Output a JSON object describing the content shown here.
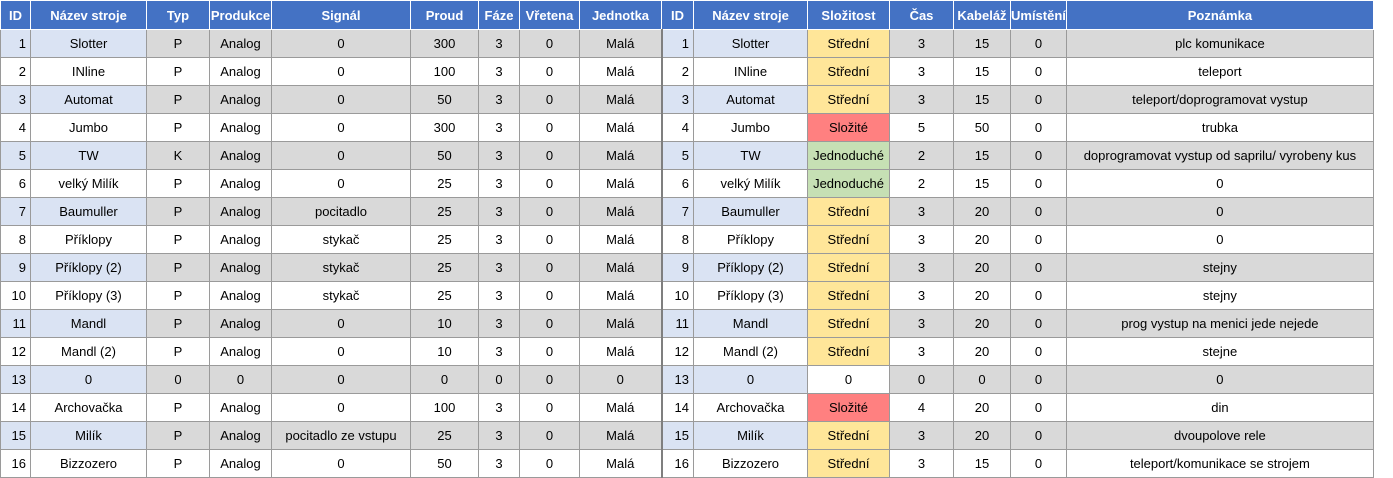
{
  "colors": {
    "header_bg": "#4472c4",
    "row_band": "#d9d9d9",
    "name_band": "#dae3f3",
    "complexity_medium": "#ffe699",
    "complexity_hard": "#ff8080",
    "complexity_easy": "#c6e0b4"
  },
  "headers": [
    "ID",
    "Název stroje",
    "Typ",
    "Produkce",
    "Signál",
    "Proud",
    "Fáze",
    "Vřetena",
    "Jednotka",
    "ID",
    "Název stroje",
    "Složitost",
    "Čas",
    "Kabeláž",
    "Umístění",
    "Poznámka"
  ],
  "rows": [
    {
      "id": "1",
      "name": "Slotter",
      "typ": "P",
      "produkce": "Analog",
      "signal": "0",
      "proud": "300",
      "faze": "3",
      "vretena": "0",
      "jednotka": "Malá",
      "id2": "1",
      "name2": "Slotter",
      "slozitost": "Střední",
      "cx": "stredni",
      "cas": "3",
      "kabelaz": "15",
      "umisteni": "0",
      "poznamka": "plc komunikace"
    },
    {
      "id": "2",
      "name": "INline",
      "typ": "P",
      "produkce": "Analog",
      "signal": "0",
      "proud": "100",
      "faze": "3",
      "vretena": "0",
      "jednotka": "Malá",
      "id2": "2",
      "name2": "INline",
      "slozitost": "Střední",
      "cx": "stredni",
      "cas": "3",
      "kabelaz": "15",
      "umisteni": "0",
      "poznamka": "teleport"
    },
    {
      "id": "3",
      "name": "Automat",
      "typ": "P",
      "produkce": "Analog",
      "signal": "0",
      "proud": "50",
      "faze": "3",
      "vretena": "0",
      "jednotka": "Malá",
      "id2": "3",
      "name2": "Automat",
      "slozitost": "Střední",
      "cx": "stredni",
      "cas": "3",
      "kabelaz": "15",
      "umisteni": "0",
      "poznamka": "teleport/doprogramovat vystup"
    },
    {
      "id": "4",
      "name": "Jumbo",
      "typ": "P",
      "produkce": "Analog",
      "signal": "0",
      "proud": "300",
      "faze": "3",
      "vretena": "0",
      "jednotka": "Malá",
      "id2": "4",
      "name2": "Jumbo",
      "slozitost": "Složité",
      "cx": "slozite",
      "cas": "5",
      "kabelaz": "50",
      "umisteni": "0",
      "poznamka": "trubka"
    },
    {
      "id": "5",
      "name": "TW",
      "typ": "K",
      "produkce": "Analog",
      "signal": "0",
      "proud": "50",
      "faze": "3",
      "vretena": "0",
      "jednotka": "Malá",
      "id2": "5",
      "name2": "TW",
      "slozitost": "Jednoduché",
      "cx": "jednoduche",
      "cas": "2",
      "kabelaz": "15",
      "umisteni": "0",
      "poznamka": "doprogramovat vystup od saprilu/ vyrobeny kus"
    },
    {
      "id": "6",
      "name": "velký Milík",
      "typ": "P",
      "produkce": "Analog",
      "signal": "0",
      "proud": "25",
      "faze": "3",
      "vretena": "0",
      "jednotka": "Malá",
      "id2": "6",
      "name2": "velký Milík",
      "slozitost": "Jednoduché",
      "cx": "jednoduche",
      "cas": "2",
      "kabelaz": "15",
      "umisteni": "0",
      "poznamka": "0"
    },
    {
      "id": "7",
      "name": "Baumuller",
      "typ": "P",
      "produkce": "Analog",
      "signal": "pocitadlo",
      "proud": "25",
      "faze": "3",
      "vretena": "0",
      "jednotka": "Malá",
      "id2": "7",
      "name2": "Baumuller",
      "slozitost": "Střední",
      "cx": "stredni",
      "cas": "3",
      "kabelaz": "20",
      "umisteni": "0",
      "poznamka": "0"
    },
    {
      "id": "8",
      "name": "Příklopy",
      "typ": "P",
      "produkce": "Analog",
      "signal": "stykač",
      "proud": "25",
      "faze": "3",
      "vretena": "0",
      "jednotka": "Malá",
      "id2": "8",
      "name2": "Příklopy",
      "slozitost": "Střední",
      "cx": "stredni",
      "cas": "3",
      "kabelaz": "20",
      "umisteni": "0",
      "poznamka": "0"
    },
    {
      "id": "9",
      "name": "Příklopy (2)",
      "typ": "P",
      "produkce": "Analog",
      "signal": "stykač",
      "proud": "25",
      "faze": "3",
      "vretena": "0",
      "jednotka": "Malá",
      "id2": "9",
      "name2": "Příklopy (2)",
      "slozitost": "Střední",
      "cx": "stredni",
      "cas": "3",
      "kabelaz": "20",
      "umisteni": "0",
      "poznamka": "stejny"
    },
    {
      "id": "10",
      "name": "Příklopy (3)",
      "typ": "P",
      "produkce": "Analog",
      "signal": "stykač",
      "proud": "25",
      "faze": "3",
      "vretena": "0",
      "jednotka": "Malá",
      "id2": "10",
      "name2": "Příklopy (3)",
      "slozitost": "Střední",
      "cx": "stredni",
      "cas": "3",
      "kabelaz": "20",
      "umisteni": "0",
      "poznamka": "stejny"
    },
    {
      "id": "11",
      "name": "Mandl",
      "typ": "P",
      "produkce": "Analog",
      "signal": "0",
      "proud": "10",
      "faze": "3",
      "vretena": "0",
      "jednotka": "Malá",
      "id2": "11",
      "name2": "Mandl",
      "slozitost": "Střední",
      "cx": "stredni",
      "cas": "3",
      "kabelaz": "20",
      "umisteni": "0",
      "poznamka": "prog vystup na menici jede nejede"
    },
    {
      "id": "12",
      "name": "Mandl (2)",
      "typ": "P",
      "produkce": "Analog",
      "signal": "0",
      "proud": "10",
      "faze": "3",
      "vretena": "0",
      "jednotka": "Malá",
      "id2": "12",
      "name2": "Mandl (2)",
      "slozitost": "Střední",
      "cx": "stredni",
      "cas": "3",
      "kabelaz": "20",
      "umisteni": "0",
      "poznamka": "stejne"
    },
    {
      "id": "13",
      "name": "0",
      "typ": "0",
      "produkce": "0",
      "signal": "0",
      "proud": "0",
      "faze": "0",
      "vretena": "0",
      "jednotka": "0",
      "id2": "13",
      "name2": "0",
      "slozitost": "0",
      "cx": "none",
      "cas": "0",
      "kabelaz": "0",
      "umisteni": "0",
      "poznamka": "0"
    },
    {
      "id": "14",
      "name": "Archovačka",
      "typ": "P",
      "produkce": "Analog",
      "signal": "0",
      "proud": "100",
      "faze": "3",
      "vretena": "0",
      "jednotka": "Malá",
      "id2": "14",
      "name2": "Archovačka",
      "slozitost": "Složité",
      "cx": "slozite",
      "cas": "4",
      "kabelaz": "20",
      "umisteni": "0",
      "poznamka": "din"
    },
    {
      "id": "15",
      "name": "Milík",
      "typ": "P",
      "produkce": "Analog",
      "signal": "pocitadlo ze vstupu",
      "proud": "25",
      "faze": "3",
      "vretena": "0",
      "jednotka": "Malá",
      "id2": "15",
      "name2": "Milík",
      "slozitost": "Střední",
      "cx": "stredni",
      "cas": "3",
      "kabelaz": "20",
      "umisteni": "0",
      "poznamka": "dvoupolove rele"
    },
    {
      "id": "16",
      "name": "Bizzozero",
      "typ": "P",
      "produkce": "Analog",
      "signal": "0",
      "proud": "50",
      "faze": "3",
      "vretena": "0",
      "jednotka": "Malá",
      "id2": "16",
      "name2": "Bizzozero",
      "slozitost": "Střední",
      "cx": "stredni",
      "cas": "3",
      "kabelaz": "15",
      "umisteni": "0",
      "poznamka": "teleport/komunikace se strojem"
    }
  ]
}
